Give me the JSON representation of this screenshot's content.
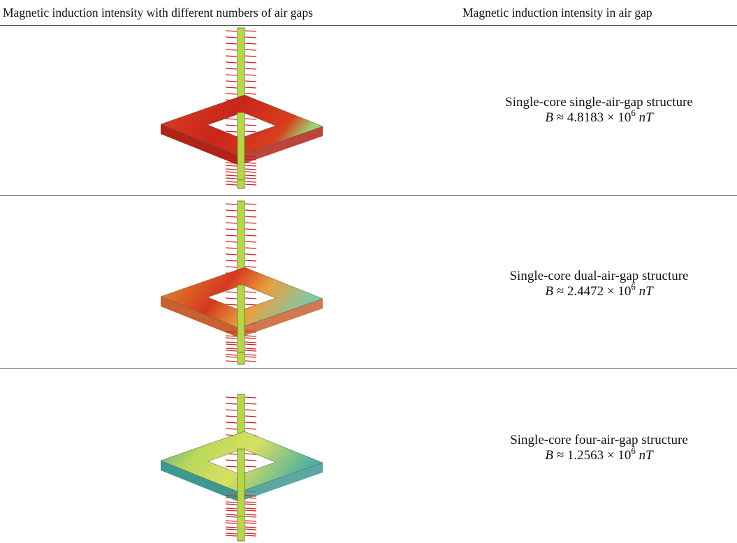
{
  "table": {
    "header": [
      "Magnetic induction intensity with different numbers of air gaps",
      "Magnetic induction intensity in air gap"
    ],
    "rows": [
      {
        "label": "Single-core single-air-gap structure",
        "symbol": "B",
        "coefficient": "≈ 4.8183 × 10",
        "exponent": "6",
        "unit": "nT"
      },
      {
        "label": "Single-core dual-air-gap structure",
        "symbol": "B",
        "coefficient": "≈ 2.4472 × 10",
        "exponent": "6",
        "unit": "nT"
      },
      {
        "label": "Single-core four-air-gap structure",
        "symbol": "B",
        "coefficient": "≈ 1.2563 × 10",
        "exponent": "6",
        "unit": "nT"
      }
    ]
  }
}
